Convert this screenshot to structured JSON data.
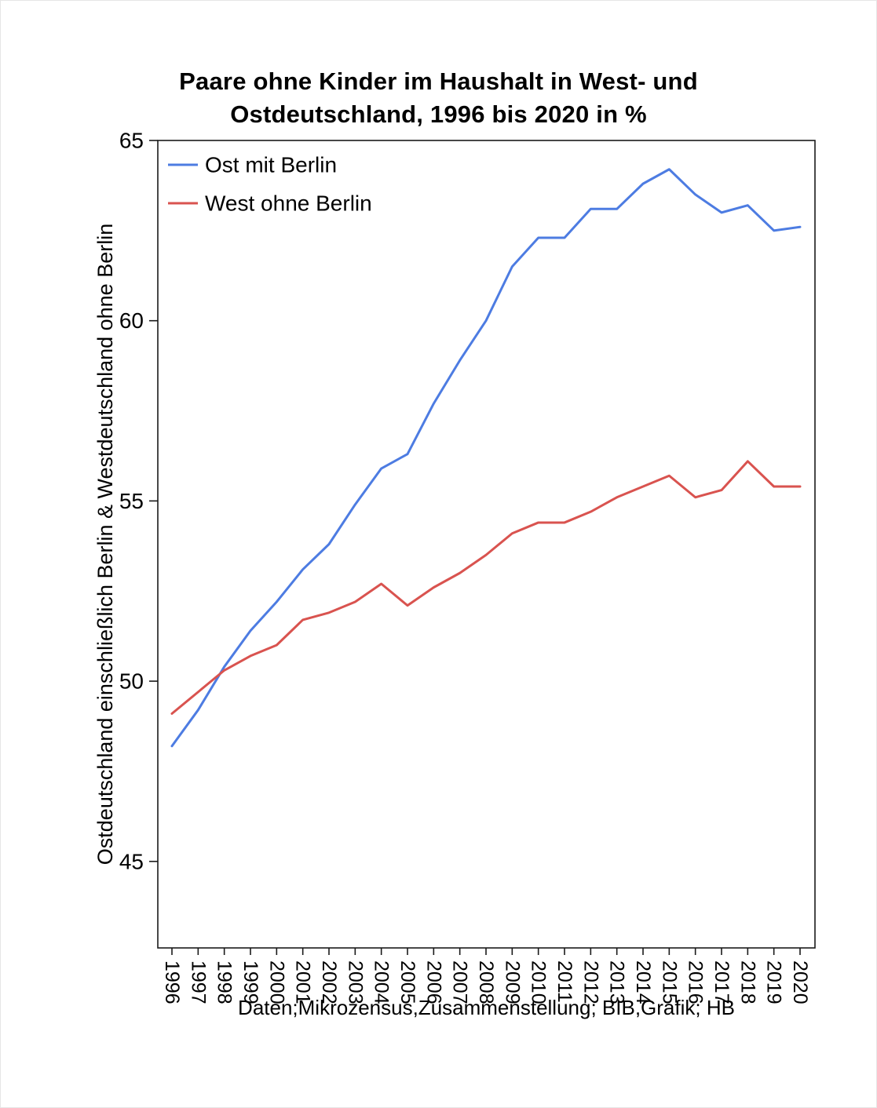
{
  "page": {
    "background": "#ffffff"
  },
  "chart_data": {
    "type": "line",
    "title": "Paare ohne Kinder im Haushalt in West- und\nOstdeutschland, 1996 bis 2020 in %",
    "ylabel": "Ostdeutschland einschließlich Berlin & Westdeutschland ohne Berlin",
    "caption": "Daten;Mikrozensus,Zusammenstellung; BIB,Grafik; HB",
    "x": [
      1996,
      1997,
      1998,
      1999,
      2000,
      2001,
      2002,
      2003,
      2004,
      2005,
      2006,
      2007,
      2008,
      2009,
      2010,
      2011,
      2012,
      2013,
      2014,
      2015,
      2016,
      2017,
      2018,
      2019,
      2020
    ],
    "yticks": [
      45,
      50,
      55,
      60,
      65
    ],
    "ylim": [
      42.6,
      65
    ],
    "grid": false,
    "legend_position": "top-left",
    "axis_color": "#1a1a1a",
    "text_color": "#000000",
    "series": [
      {
        "name": "Ost mit Berlin",
        "color": "#4d7ce2",
        "values": [
          48.2,
          49.2,
          50.4,
          51.4,
          52.2,
          53.1,
          53.8,
          54.9,
          55.9,
          56.3,
          57.7,
          58.9,
          60.0,
          61.5,
          62.3,
          62.3,
          63.1,
          63.1,
          63.8,
          64.2,
          63.5,
          63.0,
          63.2,
          62.5,
          62.6
        ]
      },
      {
        "name": "West ohne Berlin",
        "color": "#d9534f",
        "values": [
          49.1,
          49.7,
          50.3,
          50.7,
          51.0,
          51.7,
          51.9,
          52.2,
          52.7,
          52.1,
          52.6,
          53.0,
          53.5,
          54.1,
          54.4,
          54.4,
          54.7,
          55.1,
          55.4,
          55.7,
          55.1,
          55.3,
          56.1,
          55.4,
          55.4
        ]
      }
    ]
  }
}
